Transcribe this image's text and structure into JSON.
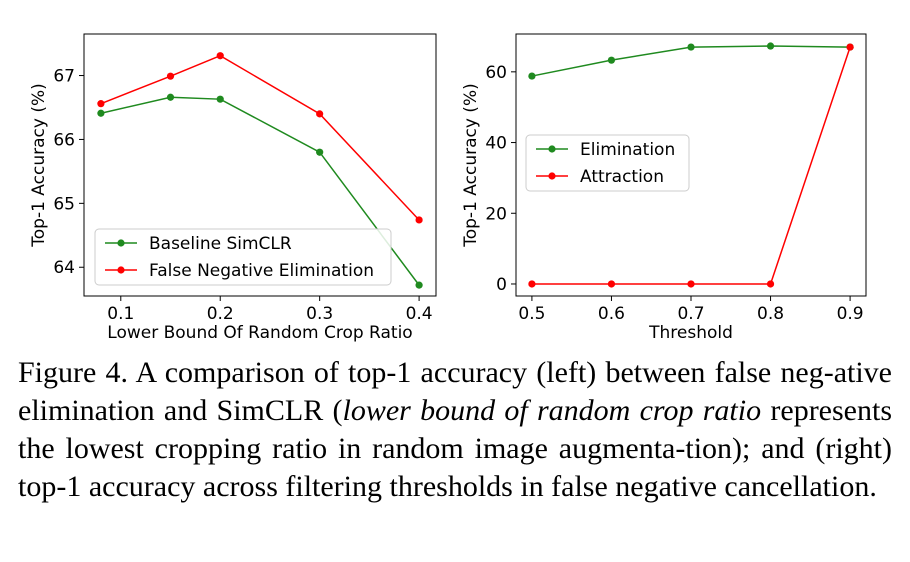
{
  "chart_data": [
    {
      "type": "line",
      "xlabel": "Lower Bound Of Random Crop Ratio",
      "ylabel": "Top-1 Accuracy (%)",
      "x": [
        0.08,
        0.15,
        0.2,
        0.3,
        0.4
      ],
      "xticks": [
        "0.1",
        "0.2",
        "0.3",
        "0.4"
      ],
      "xtick_values": [
        0.1,
        0.2,
        0.3,
        0.4
      ],
      "yticks": [
        "64",
        "65",
        "66",
        "67"
      ],
      "ytick_values": [
        64,
        65,
        66,
        67
      ],
      "xlim": [
        0.063,
        0.417
      ],
      "ylim": [
        63.55,
        67.65
      ],
      "legend_position": "lower-left",
      "series": [
        {
          "name": "Baseline SimCLR",
          "color": "#1f8a1f",
          "values": [
            66.41,
            66.66,
            66.63,
            65.8,
            63.72
          ]
        },
        {
          "name": "False Negative Elimination",
          "color": "#ff0000",
          "values": [
            66.56,
            66.99,
            67.31,
            66.4,
            64.74
          ]
        }
      ]
    },
    {
      "type": "line",
      "xlabel": "Threshold",
      "ylabel": "Top-1 Accuracy (%)",
      "x": [
        0.5,
        0.6,
        0.7,
        0.8,
        0.9
      ],
      "xticks": [
        "0.5",
        "0.6",
        "0.7",
        "0.8",
        "0.9"
      ],
      "xtick_values": [
        0.5,
        0.6,
        0.7,
        0.8,
        0.9
      ],
      "yticks": [
        "0",
        "20",
        "40",
        "60"
      ],
      "ytick_values": [
        0,
        20,
        40,
        60
      ],
      "xlim": [
        0.48,
        0.92
      ],
      "ylim": [
        -3.4,
        70.7
      ],
      "legend_position": "center-left",
      "series": [
        {
          "name": "Elimination",
          "color": "#1f8a1f",
          "values": [
            58.8,
            63.3,
            67.0,
            67.3,
            67.0
          ]
        },
        {
          "name": "Attraction",
          "color": "#ff0000",
          "values": [
            0.0,
            0.0,
            0.0,
            0.0,
            67.0
          ]
        }
      ]
    }
  ],
  "caption": {
    "lead": "Figure 4. A comparison of top-1 accuracy (left) between false neg-ative elimination and SimCLR (",
    "italic": "lower bound of random crop ratio",
    "tail": " represents the lowest cropping ratio in random image augmenta-tion); and (right) top-1 accuracy across filtering thresholds in false negative cancellation."
  }
}
